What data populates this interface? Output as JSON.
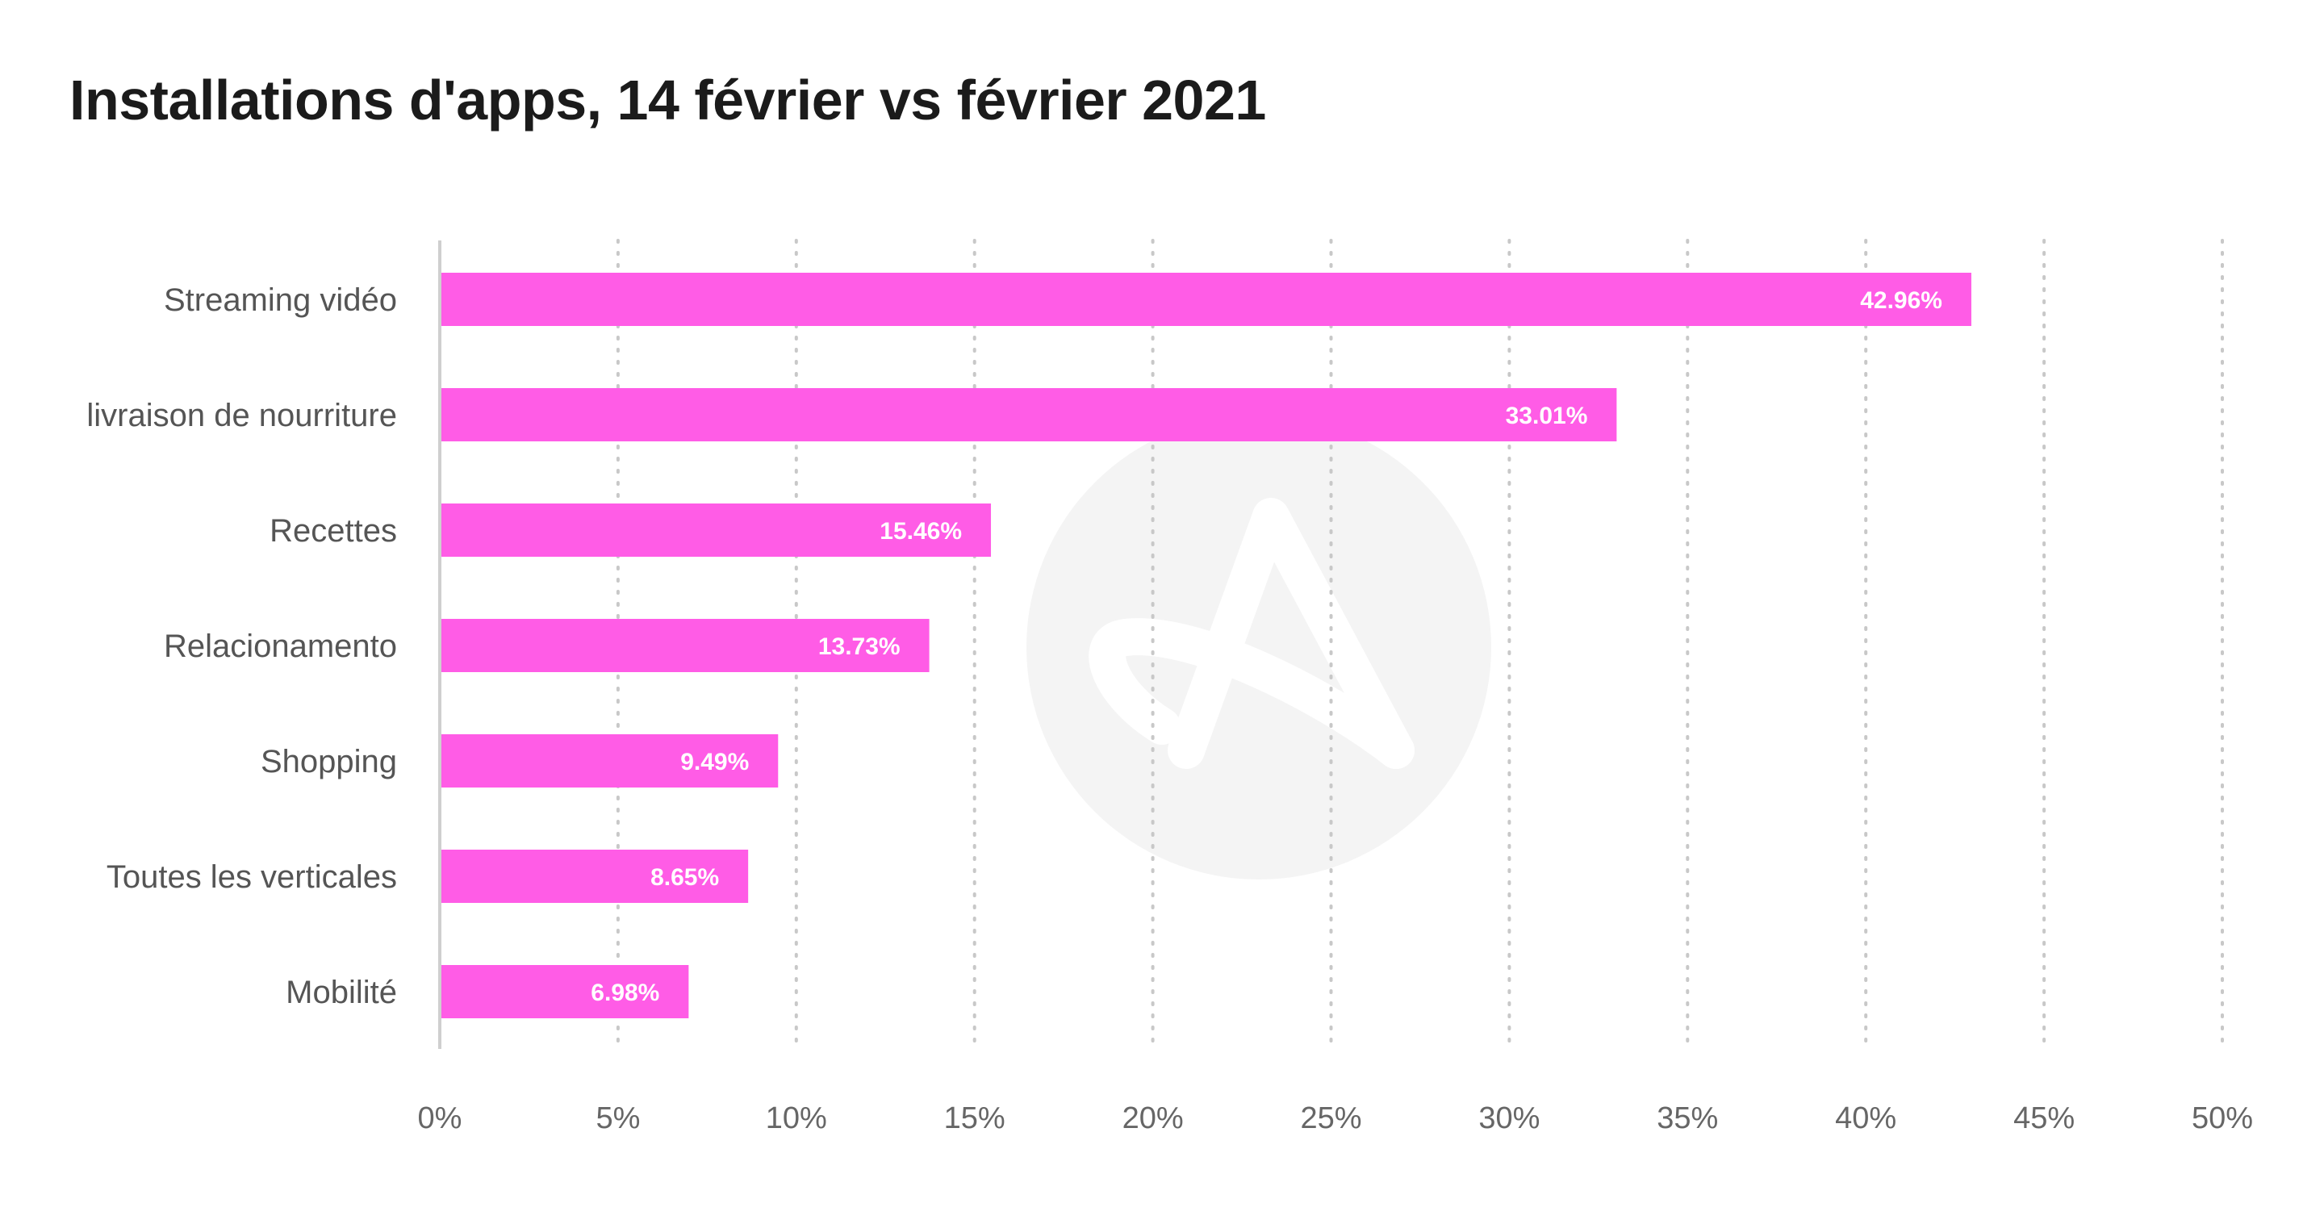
{
  "chart_data": {
    "type": "bar",
    "orientation": "horizontal",
    "title": "Installations d'apps, 14 février vs février 2021",
    "categories": [
      "Streaming vidéo",
      "livraison de nourriture",
      "Recettes",
      "Relacionamento",
      "Shopping",
      "Toutes les verticales",
      "Mobilité"
    ],
    "values": [
      42.96,
      33.01,
      15.46,
      13.73,
      9.49,
      8.65,
      6.98
    ],
    "value_labels": [
      "42.96%",
      "33.01%",
      "15.46%",
      "13.73%",
      "9.49%",
      "8.65%",
      "6.98%"
    ],
    "x_ticks": [
      "0%",
      "5%",
      "10%",
      "15%",
      "20%",
      "25%",
      "30%",
      "35%",
      "40%",
      "45%",
      "50%"
    ],
    "xlim": [
      0,
      50
    ],
    "grid": "vertical dotted",
    "legend": "none",
    "bar_color": "#ff5ce6",
    "watermark_icon": "logo-a-icon"
  }
}
